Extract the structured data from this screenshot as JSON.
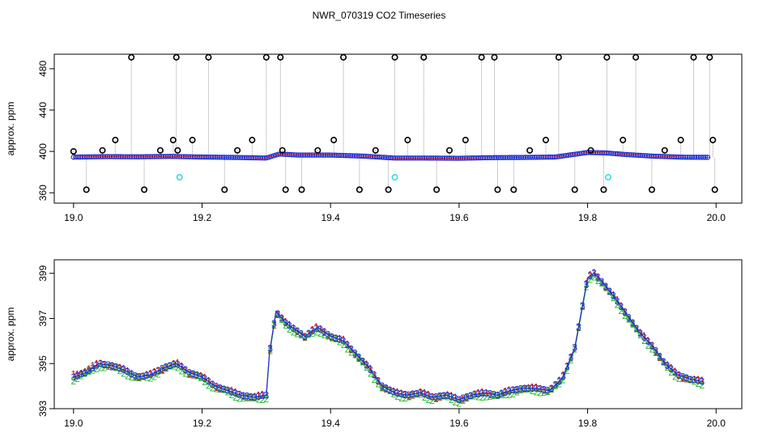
{
  "chart_data": [
    {
      "type": "scatter",
      "title": "NWR_070319  CO2 Timeseries",
      "xlabel": "",
      "ylabel": "approx. ppm",
      "xlim": [
        18.97,
        20.04
      ],
      "ylim": [
        350,
        494
      ],
      "x_ticks": [
        "19.0",
        "19.2",
        "19.4",
        "19.6",
        "19.8",
        "20.0"
      ],
      "y_ticks": [
        "360",
        "400",
        "440",
        "480"
      ],
      "grid": false,
      "colors": {
        "baseline": "#1a2fd6",
        "outlier": "#000000",
        "reference": "#33dddd",
        "drop_line": "#9a9a9a",
        "trace": "#cc0000"
      },
      "baseline": {
        "x": [
          19.0,
          19.05,
          19.1,
          19.15,
          19.2,
          19.25,
          19.3,
          19.32,
          19.35,
          19.4,
          19.45,
          19.5,
          19.55,
          19.6,
          19.65,
          19.7,
          19.75,
          19.8,
          19.83,
          19.86,
          19.9,
          19.95,
          19.99
        ],
        "y": [
          394.5,
          395,
          394.8,
          395.2,
          394.6,
          394.2,
          393.6,
          397.5,
          396.5,
          396.5,
          395.5,
          393.6,
          393.6,
          393.4,
          394,
          394.2,
          394.6,
          399,
          398.5,
          397,
          395.5,
          394.4,
          394.3
        ]
      },
      "outliers": {
        "x": [
          19.0,
          19.02,
          19.045,
          19.065,
          19.09,
          19.11,
          19.135,
          19.155,
          19.16,
          19.162,
          19.185,
          19.21,
          19.235,
          19.255,
          19.278,
          19.3,
          19.322,
          19.325,
          19.33,
          19.355,
          19.38,
          19.405,
          19.42,
          19.445,
          19.47,
          19.49,
          19.5,
          19.52,
          19.545,
          19.565,
          19.585,
          19.61,
          19.635,
          19.655,
          19.66,
          19.685,
          19.71,
          19.735,
          19.755,
          19.78,
          19.805,
          19.825,
          19.83,
          19.855,
          19.875,
          19.9,
          19.92,
          19.945,
          19.965,
          19.99,
          19.995,
          19.998
        ],
        "y": [
          400,
          363,
          401,
          411,
          491,
          363,
          401,
          411,
          491,
          401,
          411,
          491,
          363,
          401,
          411,
          491,
          491,
          401,
          363,
          363,
          401,
          411,
          491,
          363,
          401,
          363,
          491,
          411,
          491,
          363,
          401,
          411,
          491,
          491,
          363,
          363,
          401,
          411,
          491,
          363,
          401,
          363,
          491,
          411,
          491,
          363,
          401,
          411,
          491,
          491,
          411,
          363
        ]
      },
      "reference_points": {
        "x": [
          19.165,
          19.5,
          19.832
        ],
        "y": [
          375,
          375,
          375
        ]
      }
    },
    {
      "type": "scatter",
      "title": "",
      "xlabel": "",
      "ylabel": "approx. ppm",
      "xlim": [
        18.97,
        20.04
      ],
      "ylim": [
        393,
        399.6
      ],
      "x_ticks": [
        "19.0",
        "19.2",
        "19.4",
        "19.6",
        "19.8",
        "20.0"
      ],
      "y_ticks": [
        "393",
        "395",
        "397",
        "399"
      ],
      "grid": false,
      "series": [
        {
          "name": "1",
          "color": "#cc0000",
          "x": [
            19.0,
            19.02,
            19.04,
            19.06,
            19.08,
            19.1,
            19.12,
            19.14,
            19.16,
            19.18,
            19.2,
            19.22,
            19.24,
            19.26,
            19.28,
            19.3,
            19.305,
            19.315,
            19.33,
            19.34,
            19.36,
            19.38,
            19.4,
            19.42,
            19.44,
            19.46,
            19.48,
            19.5,
            19.52,
            19.54,
            19.56,
            19.58,
            19.6,
            19.62,
            19.64,
            19.66,
            19.68,
            19.7,
            19.72,
            19.74,
            19.76,
            19.78,
            19.8,
            19.81,
            19.82,
            19.84,
            19.86,
            19.88,
            19.9,
            19.92,
            19.94,
            19.96,
            19.98
          ],
          "y": [
            394.5,
            394.7,
            395.0,
            394.9,
            394.7,
            394.4,
            394.5,
            394.8,
            395.0,
            394.6,
            394.4,
            394.0,
            393.8,
            393.6,
            393.5,
            393.6,
            395.5,
            397.3,
            396.8,
            396.6,
            396.2,
            396.6,
            396.2,
            396.0,
            395.4,
            394.8,
            394.0,
            393.7,
            393.6,
            393.7,
            393.5,
            393.6,
            393.4,
            393.6,
            393.7,
            393.6,
            393.8,
            393.9,
            393.9,
            393.8,
            394.3,
            395.7,
            398.8,
            399.0,
            398.7,
            398.0,
            397.2,
            396.4,
            395.8,
            395.0,
            394.5,
            394.3,
            394.2
          ]
        },
        {
          "name": "2",
          "color": "#22bb22",
          "x": [
            19.0,
            19.02,
            19.04,
            19.06,
            19.08,
            19.1,
            19.12,
            19.14,
            19.16,
            19.18,
            19.2,
            19.22,
            19.24,
            19.26,
            19.28,
            19.3,
            19.305,
            19.315,
            19.33,
            19.34,
            19.36,
            19.38,
            19.4,
            19.42,
            19.44,
            19.46,
            19.48,
            19.5,
            19.52,
            19.54,
            19.56,
            19.58,
            19.6,
            19.62,
            19.64,
            19.66,
            19.68,
            19.7,
            19.72,
            19.74,
            19.76,
            19.78,
            19.8,
            19.81,
            19.82,
            19.84,
            19.86,
            19.88,
            19.9,
            19.92,
            19.94,
            19.96,
            19.98
          ],
          "y": [
            394.3,
            394.5,
            394.9,
            394.8,
            394.6,
            394.3,
            394.4,
            394.7,
            394.9,
            394.5,
            394.3,
            393.9,
            393.7,
            393.5,
            393.4,
            393.5,
            395.4,
            397.2,
            396.7,
            396.5,
            396.1,
            396.5,
            396.1,
            395.9,
            395.3,
            394.7,
            393.9,
            393.6,
            393.5,
            393.6,
            393.4,
            393.5,
            393.3,
            393.5,
            393.6,
            393.5,
            393.7,
            393.8,
            393.8,
            393.7,
            394.2,
            395.6,
            398.7,
            398.9,
            398.6,
            397.9,
            397.1,
            396.3,
            395.7,
            394.9,
            394.4,
            394.2,
            394.1
          ]
        },
        {
          "name": "3",
          "color": "#1a2fd6",
          "x": [
            19.0,
            19.02,
            19.04,
            19.06,
            19.08,
            19.1,
            19.12,
            19.14,
            19.16,
            19.18,
            19.2,
            19.22,
            19.24,
            19.26,
            19.28,
            19.3,
            19.305,
            19.315,
            19.33,
            19.34,
            19.36,
            19.38,
            19.4,
            19.42,
            19.44,
            19.46,
            19.48,
            19.5,
            19.52,
            19.54,
            19.56,
            19.58,
            19.6,
            19.62,
            19.64,
            19.66,
            19.68,
            19.7,
            19.72,
            19.74,
            19.76,
            19.78,
            19.8,
            19.81,
            19.82,
            19.84,
            19.86,
            19.88,
            19.9,
            19.92,
            19.94,
            19.96,
            19.98
          ],
          "y": [
            394.4,
            394.6,
            395.0,
            394.9,
            394.7,
            394.4,
            394.5,
            394.8,
            395.0,
            394.6,
            394.4,
            394.0,
            393.8,
            393.6,
            393.5,
            393.6,
            395.5,
            397.3,
            396.8,
            396.6,
            396.2,
            396.6,
            396.2,
            396.0,
            395.4,
            394.8,
            394.0,
            393.7,
            393.6,
            393.7,
            393.5,
            393.6,
            393.4,
            393.6,
            393.7,
            393.6,
            393.8,
            393.9,
            393.9,
            393.8,
            394.3,
            395.7,
            398.8,
            399.0,
            398.7,
            398.0,
            397.2,
            396.4,
            395.8,
            395.0,
            394.5,
            394.3,
            394.2
          ]
        }
      ]
    }
  ]
}
